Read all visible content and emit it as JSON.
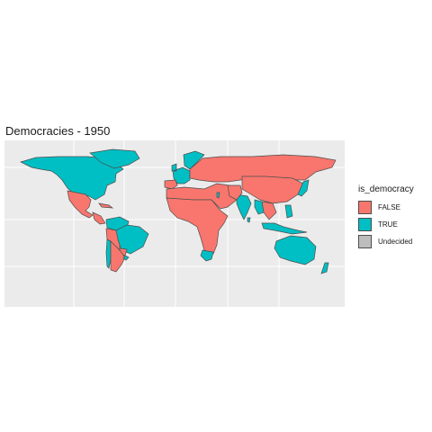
{
  "title": "Democracies - 1950",
  "legend": {
    "title": "is_democracy",
    "items": [
      {
        "label": "FALSE",
        "color": "#F8766D"
      },
      {
        "label": "TRUE",
        "color": "#00BFC4"
      },
      {
        "label": "Undecided",
        "color": "#BDBDBD"
      }
    ]
  },
  "colors": {
    "panel_background": "#EBEBEB",
    "grid": "#FFFFFF",
    "border": "#4D4D4D",
    "false": "#F8766D",
    "true": "#00BFC4"
  },
  "regions": [
    {
      "name": "North America (USA, Canada)",
      "status": "TRUE"
    },
    {
      "name": "Greenland",
      "status": "TRUE"
    },
    {
      "name": "Mexico",
      "status": "FALSE"
    },
    {
      "name": "Central America and Caribbean",
      "status": "FALSE"
    },
    {
      "name": "Colombia and Venezuela",
      "status": "TRUE"
    },
    {
      "name": "Peru and Bolivia",
      "status": "FALSE"
    },
    {
      "name": "Brazil",
      "status": "TRUE"
    },
    {
      "name": "Paraguay",
      "status": "FALSE"
    },
    {
      "name": "Chile",
      "status": "TRUE"
    },
    {
      "name": "Argentina",
      "status": "FALSE"
    },
    {
      "name": "Uruguay",
      "status": "TRUE"
    },
    {
      "name": "Western Europe",
      "status": "TRUE"
    },
    {
      "name": "Iberia",
      "status": "FALSE"
    },
    {
      "name": "Scandinavia",
      "status": "TRUE"
    },
    {
      "name": "Eastern Europe and USSR",
      "status": "FALSE"
    },
    {
      "name": "Middle East and North Africa",
      "status": "FALSE"
    },
    {
      "name": "Israel",
      "status": "TRUE"
    },
    {
      "name": "Sub-Saharan Africa",
      "status": "FALSE"
    },
    {
      "name": "South Africa",
      "status": "TRUE"
    },
    {
      "name": "India",
      "status": "TRUE"
    },
    {
      "name": "Pakistan and Afghanistan",
      "status": "FALSE"
    },
    {
      "name": "China and Mongolia",
      "status": "FALSE"
    },
    {
      "name": "Southeast Asia",
      "status": "FALSE"
    },
    {
      "name": "Burma",
      "status": "TRUE"
    },
    {
      "name": "Indonesia",
      "status": "TRUE"
    },
    {
      "name": "Philippines",
      "status": "TRUE"
    },
    {
      "name": "Japan",
      "status": "TRUE"
    },
    {
      "name": "Australia",
      "status": "TRUE"
    },
    {
      "name": "New Zealand",
      "status": "TRUE"
    },
    {
      "name": "Sri Lanka",
      "status": "TRUE"
    }
  ]
}
